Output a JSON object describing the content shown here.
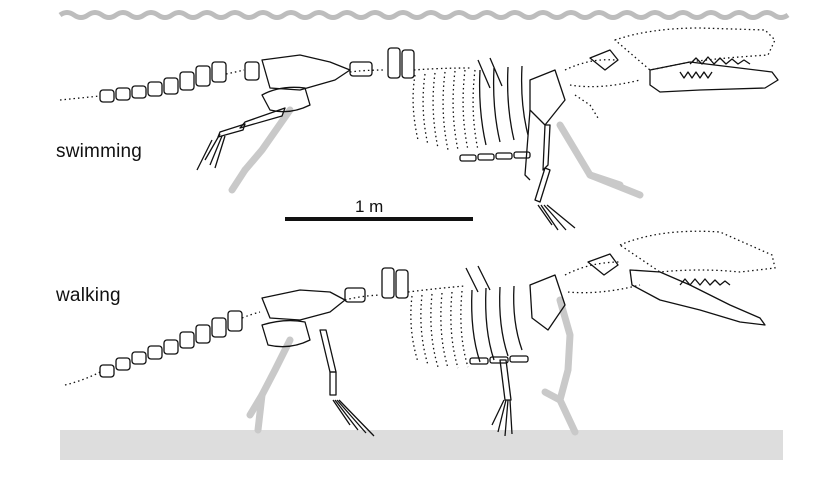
{
  "figure": {
    "labels": {
      "swimming": "swimming",
      "walking": "walking"
    },
    "scale_bar": {
      "text": "1 m"
    },
    "colors": {
      "outline": "#111111",
      "ghost": "#c9c9c9",
      "water": "#bdbdbd",
      "ground": "#dddddd"
    }
  }
}
